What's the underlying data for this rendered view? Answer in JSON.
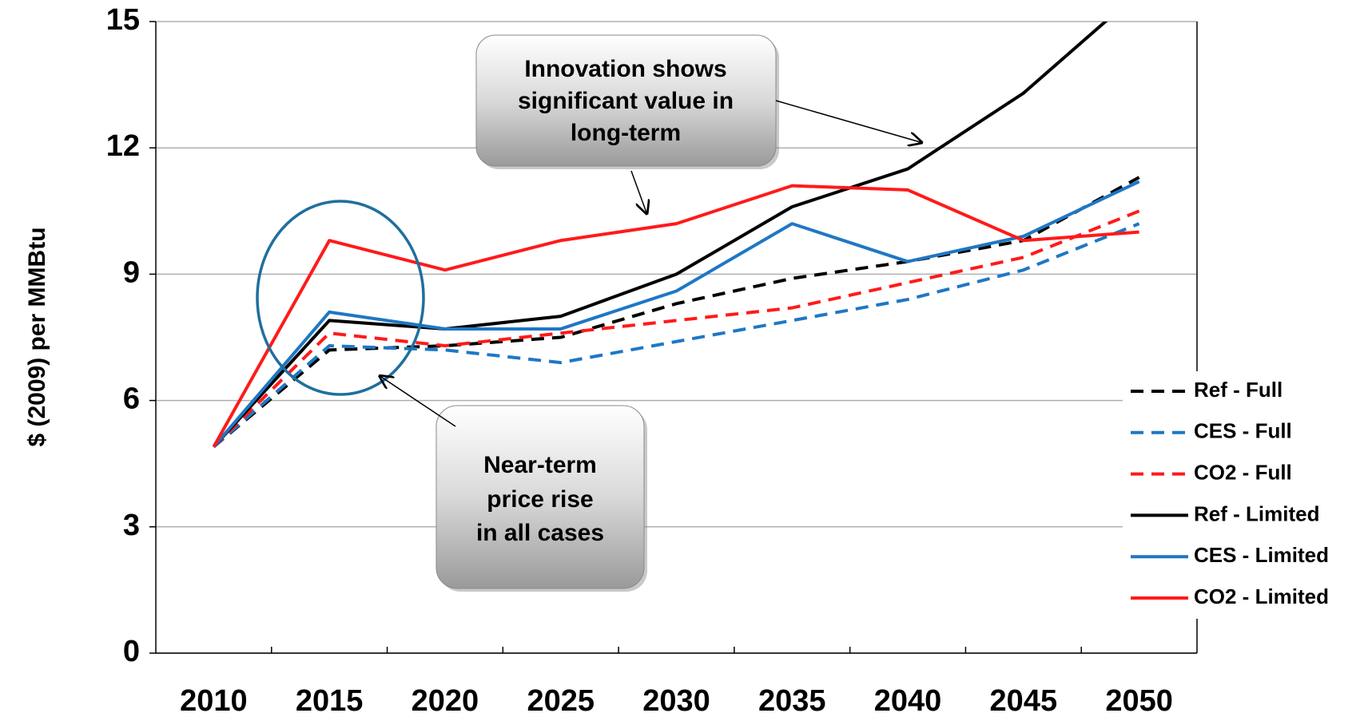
{
  "chart_data": {
    "type": "line",
    "y_label": "$ (2009) per MMBtu",
    "categories": [
      "2010",
      "2015",
      "2020",
      "2025",
      "2030",
      "2035",
      "2040",
      "2045",
      "2050"
    ],
    "ylim": [
      0,
      15
    ],
    "yticks": [
      0,
      3,
      6,
      9,
      12,
      15
    ],
    "grid": true,
    "legend": "lower right",
    "series": [
      {
        "name": "Ref - Full",
        "color": "#000000",
        "style": "dashed",
        "values": [
          4.9,
          7.2,
          7.3,
          7.5,
          8.3,
          8.9,
          9.3,
          9.8,
          11.3
        ]
      },
      {
        "name": "CES - Full",
        "color": "#1f77c4",
        "style": "dashed",
        "values": [
          4.9,
          7.3,
          7.2,
          6.9,
          7.4,
          7.9,
          8.4,
          9.1,
          10.2
        ]
      },
      {
        "name": "CO2 -  Full",
        "color": "#ff1a1a",
        "style": "dashed",
        "values": [
          4.9,
          7.6,
          7.3,
          7.6,
          7.9,
          8.2,
          8.8,
          9.4,
          10.5
        ]
      },
      {
        "name": "Ref - Limited",
        "color": "#000000",
        "style": "solid",
        "values": [
          4.9,
          7.9,
          7.7,
          8.0,
          9.0,
          10.6,
          11.5,
          13.3,
          15.7
        ]
      },
      {
        "name": "CES - Limited",
        "color": "#1f77c4",
        "style": "solid",
        "values": [
          4.9,
          8.1,
          7.7,
          7.7,
          8.6,
          10.2,
          9.3,
          9.9,
          11.2
        ]
      },
      {
        "name": "CO2 - Limited",
        "color": "#ff1a1a",
        "style": "solid",
        "values": [
          4.9,
          9.8,
          9.1,
          9.8,
          10.2,
          11.1,
          11.0,
          9.8,
          10.0
        ]
      }
    ],
    "annotations": [
      {
        "lines": [
          "Innovation shows",
          "significant value in",
          "long-term"
        ]
      },
      {
        "lines": [
          "Near-term",
          "price rise",
          "in all cases"
        ]
      }
    ]
  }
}
